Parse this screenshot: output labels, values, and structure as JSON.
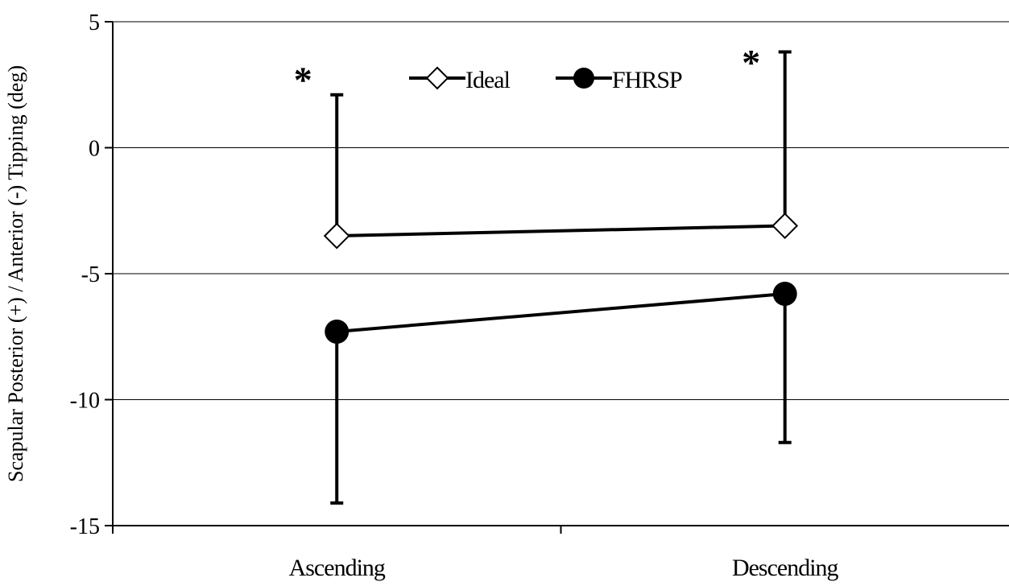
{
  "chart_data": {
    "type": "line",
    "title": "",
    "xlabel": "",
    "ylabel": "Scapular Posterior (+) / Anterior (-) Tipping (deg)",
    "categories": [
      "Ascending",
      "Descending"
    ],
    "ylim": [
      -15,
      5
    ],
    "yticks": [
      5,
      0,
      -5,
      -10,
      -15
    ],
    "grid": "horizontal",
    "legend_position": "top-center",
    "series": [
      {
        "name": "Ideal",
        "marker": "diamond-open",
        "values": [
          -3.5,
          -3.1
        ],
        "error_bars": {
          "direction": "up",
          "upper": [
            2.1,
            3.8
          ]
        }
      },
      {
        "name": "FHRSP",
        "marker": "circle-filled",
        "values": [
          -7.3,
          -5.8
        ],
        "error_bars": {
          "direction": "down",
          "lower": [
            -14.1,
            -11.7
          ]
        }
      }
    ],
    "annotations": [
      {
        "text": "*",
        "category": "Ascending",
        "y": 2.9
      },
      {
        "text": "*",
        "category": "Descending",
        "y": 3.6
      }
    ]
  }
}
